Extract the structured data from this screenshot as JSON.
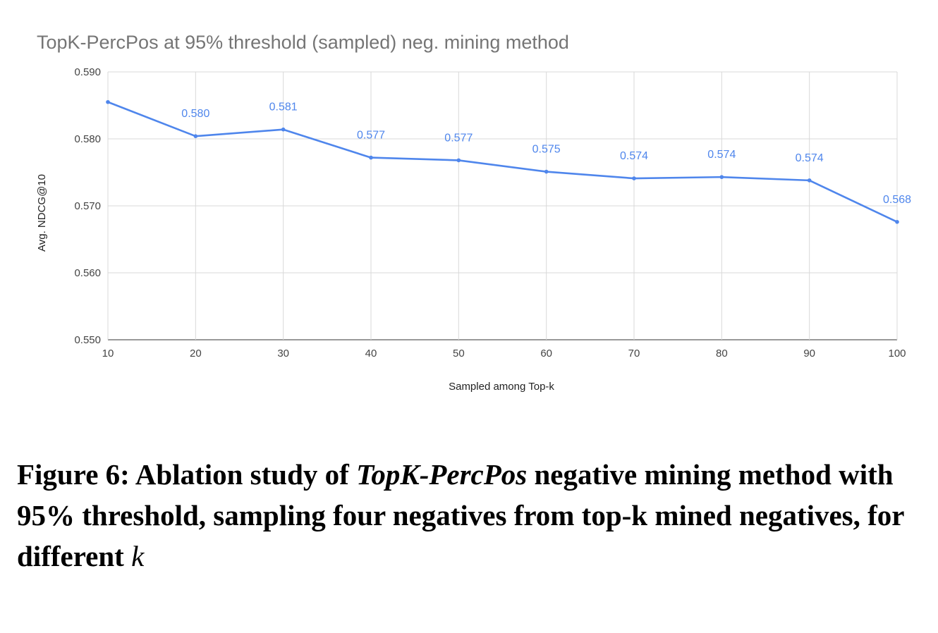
{
  "chart_data": {
    "type": "line",
    "title": "TopK-PercPos at 95% threshold (sampled)  neg. mining method",
    "xlabel": "Sampled among Top-k",
    "ylabel": "Avg. NDCG@10",
    "ylim": [
      0.55,
      0.59
    ],
    "yticks": [
      "0.590",
      "0.580",
      "0.570",
      "0.560",
      "0.550"
    ],
    "ytick_values": [
      0.59,
      0.58,
      0.57,
      0.56,
      0.55
    ],
    "categories": [
      "10",
      "20",
      "30",
      "40",
      "50",
      "60",
      "70",
      "80",
      "90",
      "100"
    ],
    "series": [
      {
        "name": "Avg. NDCG@10",
        "color": "#4f86ec",
        "values": [
          0.5855,
          0.5804,
          0.5814,
          0.5772,
          0.5768,
          0.5751,
          0.5741,
          0.5743,
          0.5738,
          0.5676
        ],
        "labels": [
          "",
          "0.580",
          "0.581",
          "0.577",
          "0.577",
          "0.575",
          "0.574",
          "0.574",
          "0.574",
          "0.568"
        ]
      }
    ],
    "grid": true,
    "legend": "none"
  },
  "caption": {
    "prefix": "Figure 6: Ablation study of ",
    "method": "TopK-PercPos",
    "middle": " negative mining method with 95% threshold, sampling four negatives from top-k mined negatives, for different ",
    "variable": "k"
  },
  "colors": {
    "line": "#4f86ec",
    "grid": "#d9d9d9"
  }
}
